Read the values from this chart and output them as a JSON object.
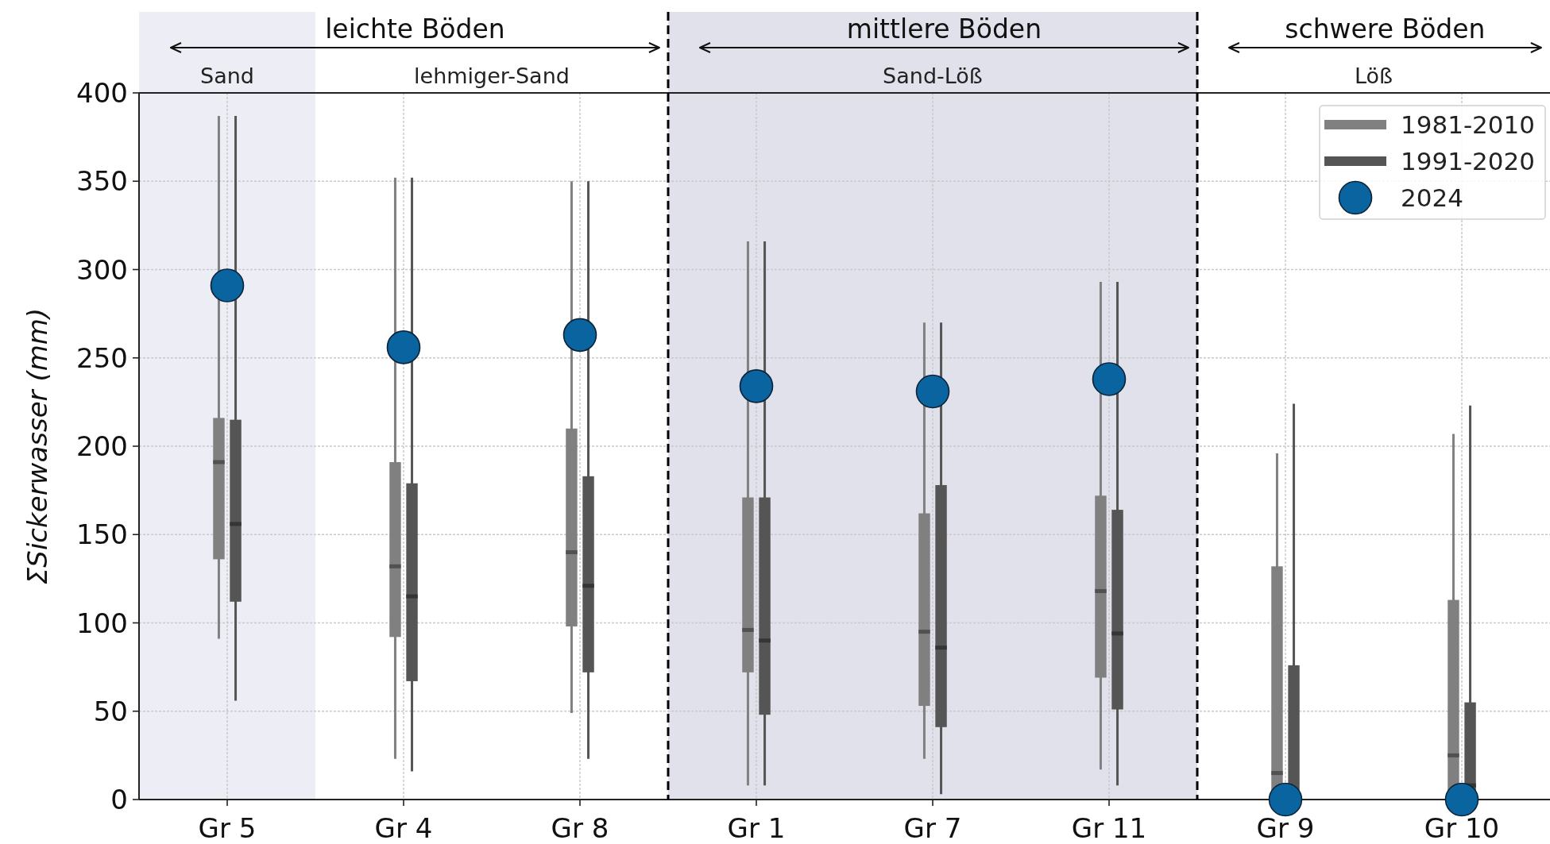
{
  "chart_data": {
    "type": "box",
    "ylabel": "ΣSickerwasser (mm)",
    "categories": [
      "Gr 5",
      "Gr 4",
      "Gr 8",
      "Gr 1",
      "Gr 7",
      "Gr 11",
      "Gr 9",
      "Gr 10"
    ],
    "series": [
      {
        "name": "1981-2010",
        "color": "#808080",
        "boxes": [
          {
            "low": 91,
            "q1": 136,
            "median": 191,
            "q3": 216,
            "high": 387
          },
          {
            "low": 23,
            "q1": 92,
            "median": 132,
            "q3": 191,
            "high": 352
          },
          {
            "low": 49,
            "q1": 98,
            "median": 140,
            "q3": 210,
            "high": 350
          },
          {
            "low": 8,
            "q1": 72,
            "median": 96,
            "q3": 171,
            "high": 316
          },
          {
            "low": 23,
            "q1": 53,
            "median": 95,
            "q3": 162,
            "high": 270
          },
          {
            "low": 17,
            "q1": 69,
            "median": 118,
            "q3": 172,
            "high": 293
          },
          {
            "low": 0,
            "q1": 0,
            "median": 15,
            "q3": 132,
            "high": 196
          },
          {
            "low": 0,
            "q1": 0,
            "median": 25,
            "q3": 113,
            "high": 207
          }
        ]
      },
      {
        "name": "1991-2020",
        "color": "#555555",
        "boxes": [
          {
            "low": 56,
            "q1": 112,
            "median": 156,
            "q3": 215,
            "high": 387
          },
          {
            "low": 16,
            "q1": 67,
            "median": 115,
            "q3": 179,
            "high": 352
          },
          {
            "low": 23,
            "q1": 72,
            "median": 121,
            "q3": 183,
            "high": 350
          },
          {
            "low": 8,
            "q1": 48,
            "median": 90,
            "q3": 171,
            "high": 316
          },
          {
            "low": 3,
            "q1": 41,
            "median": 86,
            "q3": 178,
            "high": 270
          },
          {
            "low": 8,
            "q1": 51,
            "median": 94,
            "q3": 164,
            "high": 293
          },
          {
            "low": 0,
            "q1": 0,
            "median": 1,
            "q3": 76,
            "high": 224
          },
          {
            "low": 0,
            "q1": 0,
            "median": 8,
            "q3": 55,
            "high": 223
          }
        ]
      },
      {
        "name": "2024",
        "type": "scatter",
        "color": "#0a64a0",
        "marker": "circle",
        "x": [
          "Gr 5",
          "Gr 4",
          "Gr 8",
          "Gr 1",
          "Gr 7",
          "Gr 11",
          "Gr 9",
          "Gr 10"
        ],
        "values": [
          291,
          256,
          263,
          234,
          231,
          238,
          0,
          0
        ]
      }
    ],
    "ylim": [
      0,
      400
    ],
    "yticks": [
      0,
      50,
      100,
      150,
      200,
      250,
      300,
      350,
      400
    ],
    "grid": true,
    "legend": "top right",
    "bands": [
      {
        "axis": "x",
        "from": "Gr 5",
        "to": "Gr 5",
        "label": "Sand",
        "color": "#ededf6"
      },
      {
        "axis": "x",
        "from": "Gr 1",
        "to": "Gr 11",
        "label": "Sand-Löß",
        "color": "#e0e1eb"
      }
    ],
    "annotations": [
      "leichte Böden",
      "mittlere Böden",
      "schwere Böden",
      "lehmiger-Sand",
      "Löß"
    ]
  }
}
